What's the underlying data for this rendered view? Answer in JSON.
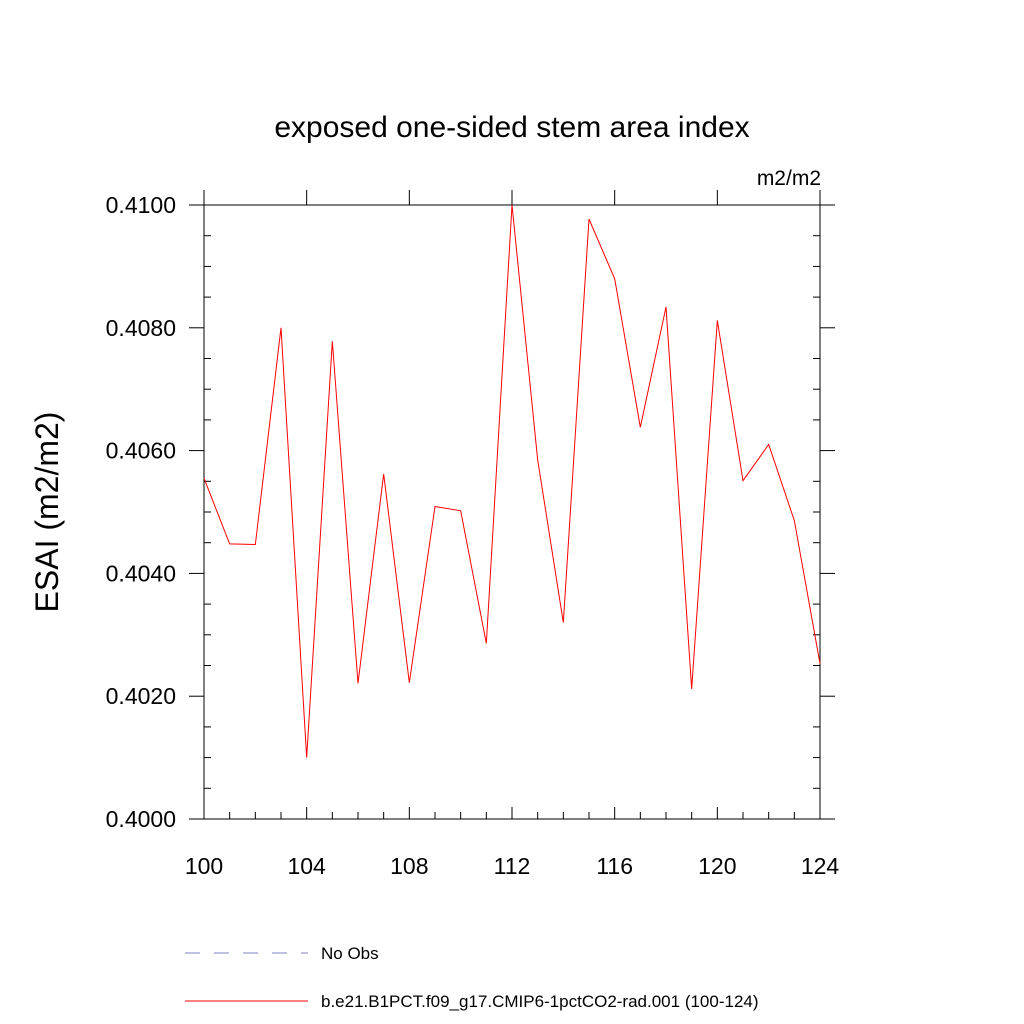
{
  "chart_data": {
    "type": "line",
    "title": "exposed one-sided stem area index",
    "units_label": "m2/m2",
    "xlabel": "",
    "ylabel": "ESAI  (m2/m2)",
    "xlim": [
      100,
      124
    ],
    "ylim": [
      0.4,
      0.41
    ],
    "x_ticks": [
      100,
      104,
      108,
      112,
      116,
      120,
      124
    ],
    "y_ticks": [
      "0.4000",
      "0.4020",
      "0.4040",
      "0.4060",
      "0.4080",
      "0.4100"
    ],
    "y_tick_values": [
      0.4,
      0.402,
      0.404,
      0.406,
      0.408,
      0.41
    ],
    "series": [
      {
        "name": "b.e21.B1PCT.f09_g17.CMIP6-1pctCO2-rad.001 (100-124)",
        "color": "#ff0000",
        "dash": "solid",
        "x": [
          100,
          101,
          102,
          103,
          104,
          105,
          106,
          107,
          108,
          109,
          110,
          111,
          112,
          113,
          114,
          115,
          116,
          117,
          118,
          119,
          120,
          121,
          122,
          123,
          124
        ],
        "values": [
          0.40555,
          0.40448,
          0.40447,
          0.408,
          0.401,
          0.40778,
          0.40221,
          0.40562,
          0.40222,
          0.40509,
          0.40502,
          0.40286,
          0.41,
          0.40585,
          0.4032,
          0.40977,
          0.4088,
          0.40638,
          0.40834,
          0.40212,
          0.40812,
          0.40551,
          0.4061,
          0.40486,
          0.40253
        ]
      },
      {
        "name": "No Obs",
        "color": "#8080c0",
        "dash": "dashed",
        "x": [],
        "values": []
      }
    ],
    "grid": false,
    "legend_position": "bottom"
  }
}
